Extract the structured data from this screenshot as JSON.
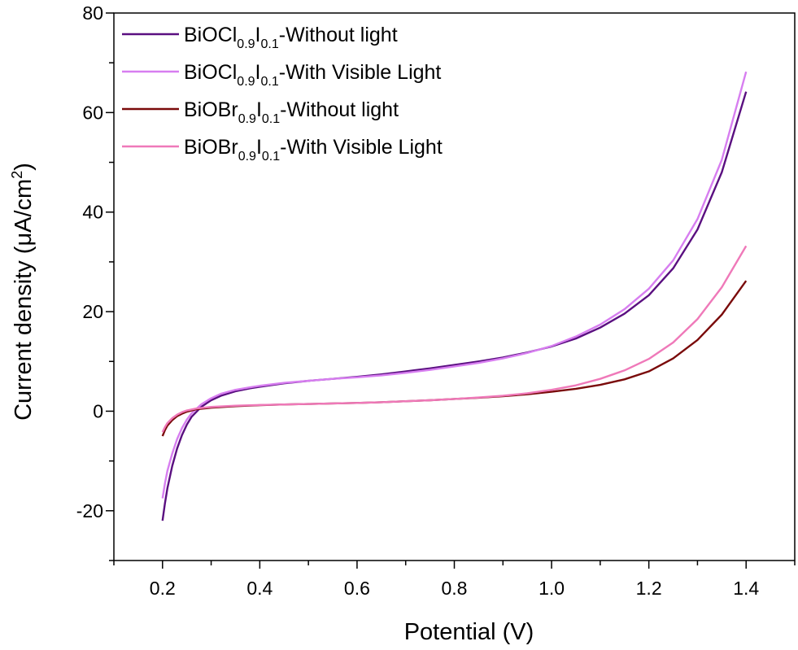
{
  "chart_data": {
    "type": "line",
    "xlabel": "Potential (V)",
    "ylabel_main": "Current density (μA/cm",
    "ylabel_sup": "2",
    "ylabel_close": ")",
    "xlim": [
      0.1,
      1.5
    ],
    "ylim": [
      -30,
      80
    ],
    "xticks": [
      0.2,
      0.4,
      0.6,
      0.8,
      1.0,
      1.2,
      1.4
    ],
    "xtick_labels": [
      "0.2",
      "0.4",
      "0.6",
      "0.8",
      "1.0",
      "1.2",
      "1.4"
    ],
    "yticks": [
      -20,
      0,
      20,
      40,
      60,
      80
    ],
    "ytick_labels": [
      "-20",
      "0",
      "20",
      "40",
      "60",
      "80"
    ],
    "grid": false,
    "legend_position": "top-left",
    "series": [
      {
        "legend_parts": [
          {
            "text": "BiOCl",
            "sub": false
          },
          {
            "text": "0.9",
            "sub": true
          },
          {
            "text": "I",
            "sub": false
          },
          {
            "text": "0.1",
            "sub": true
          },
          {
            "text": "-Without light",
            "sub": false
          }
        ],
        "color": "#5a0f80",
        "x": [
          0.2,
          0.205,
          0.21,
          0.22,
          0.23,
          0.24,
          0.25,
          0.26,
          0.28,
          0.3,
          0.32,
          0.35,
          0.38,
          0.4,
          0.45,
          0.5,
          0.55,
          0.6,
          0.65,
          0.7,
          0.75,
          0.8,
          0.85,
          0.9,
          0.95,
          1.0,
          1.05,
          1.1,
          1.15,
          1.2,
          1.25,
          1.3,
          1.35,
          1.4
        ],
        "y": [
          -22,
          -18.5,
          -15.5,
          -11,
          -7.5,
          -4.8,
          -2.7,
          -1.1,
          0.9,
          2.2,
          3.1,
          4.0,
          4.6,
          4.9,
          5.6,
          6.1,
          6.5,
          6.9,
          7.4,
          8.0,
          8.6,
          9.3,
          10.0,
          10.8,
          11.8,
          13.0,
          14.6,
          16.8,
          19.6,
          23.3,
          28.7,
          36.5,
          48.0,
          64.2
        ]
      },
      {
        "legend_parts": [
          {
            "text": "BiOCl",
            "sub": false
          },
          {
            "text": "0.9",
            "sub": true
          },
          {
            "text": "I",
            "sub": false
          },
          {
            "text": "0.1",
            "sub": true
          },
          {
            "text": "-With Visible Light",
            "sub": false
          }
        ],
        "color": "#d77ef0",
        "x": [
          0.2,
          0.205,
          0.21,
          0.22,
          0.23,
          0.24,
          0.25,
          0.26,
          0.28,
          0.3,
          0.32,
          0.35,
          0.38,
          0.4,
          0.45,
          0.5,
          0.55,
          0.6,
          0.65,
          0.7,
          0.75,
          0.8,
          0.85,
          0.9,
          0.95,
          1.0,
          1.05,
          1.1,
          1.15,
          1.2,
          1.25,
          1.3,
          1.35,
          1.4
        ],
        "y": [
          -17.5,
          -14.5,
          -12,
          -8.5,
          -5.6,
          -3.4,
          -1.7,
          -0.4,
          1.4,
          2.6,
          3.5,
          4.3,
          4.8,
          5.1,
          5.7,
          6.1,
          6.5,
          6.8,
          7.2,
          7.7,
          8.3,
          9.0,
          9.7,
          10.6,
          11.7,
          13.1,
          15.0,
          17.4,
          20.5,
          24.6,
          30.3,
          38.6,
          50.5,
          68.2
        ]
      },
      {
        "legend_parts": [
          {
            "text": "BiOBr",
            "sub": false
          },
          {
            "text": "0.9",
            "sub": true
          },
          {
            "text": "I",
            "sub": false
          },
          {
            "text": "0.1",
            "sub": true
          },
          {
            "text": "-Without light",
            "sub": false
          }
        ],
        "color": "#7a0a0a",
        "x": [
          0.2,
          0.205,
          0.21,
          0.22,
          0.23,
          0.24,
          0.25,
          0.27,
          0.3,
          0.35,
          0.4,
          0.45,
          0.5,
          0.55,
          0.6,
          0.65,
          0.7,
          0.75,
          0.8,
          0.85,
          0.9,
          0.95,
          1.0,
          1.05,
          1.1,
          1.15,
          1.2,
          1.25,
          1.3,
          1.35,
          1.4
        ],
        "y": [
          -5.0,
          -3.8,
          -2.9,
          -1.8,
          -1.0,
          -0.5,
          -0.1,
          0.4,
          0.7,
          1.0,
          1.2,
          1.35,
          1.45,
          1.55,
          1.65,
          1.8,
          2.0,
          2.2,
          2.45,
          2.7,
          3.0,
          3.4,
          3.9,
          4.5,
          5.3,
          6.4,
          8.0,
          10.6,
          14.3,
          19.4,
          26.2
        ]
      },
      {
        "legend_parts": [
          {
            "text": "BiOBr",
            "sub": false
          },
          {
            "text": "0.9",
            "sub": true
          },
          {
            "text": "I",
            "sub": false
          },
          {
            "text": "0.1",
            "sub": true
          },
          {
            "text": "-With Visible Light",
            "sub": false
          }
        ],
        "color": "#ef79b9",
        "x": [
          0.2,
          0.205,
          0.21,
          0.22,
          0.23,
          0.24,
          0.25,
          0.27,
          0.3,
          0.35,
          0.4,
          0.45,
          0.5,
          0.55,
          0.6,
          0.65,
          0.7,
          0.75,
          0.8,
          0.85,
          0.9,
          0.95,
          1.0,
          1.05,
          1.1,
          1.15,
          1.2,
          1.25,
          1.3,
          1.35,
          1.4
        ],
        "y": [
          -4.2,
          -3.2,
          -2.4,
          -1.4,
          -0.7,
          -0.2,
          0.15,
          0.55,
          0.85,
          1.1,
          1.25,
          1.35,
          1.45,
          1.55,
          1.65,
          1.8,
          2.0,
          2.2,
          2.45,
          2.75,
          3.1,
          3.6,
          4.3,
          5.2,
          6.5,
          8.2,
          10.5,
          13.8,
          18.5,
          24.9,
          33.2
        ]
      }
    ]
  }
}
